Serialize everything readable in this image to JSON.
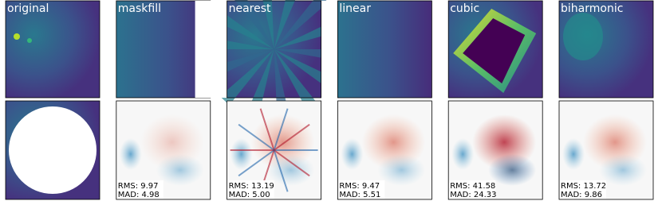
{
  "panels": [
    {
      "title": "original"
    },
    {
      "title": "maskfill",
      "rms": "RMS: 9.97",
      "mad": "MAD: 4.98"
    },
    {
      "title": "nearest",
      "rms": "RMS: 13.19",
      "mad": "MAD: 5.00"
    },
    {
      "title": "linear",
      "rms": "RMS: 9.47",
      "mad": "MAD: 5.51"
    },
    {
      "title": "cubic",
      "rms": "RMS: 41.58",
      "mad": "MAD: 24.33"
    },
    {
      "title": "biharmonic",
      "rms": "RMS: 13.72",
      "mad": "MAD: 9.86"
    }
  ]
}
